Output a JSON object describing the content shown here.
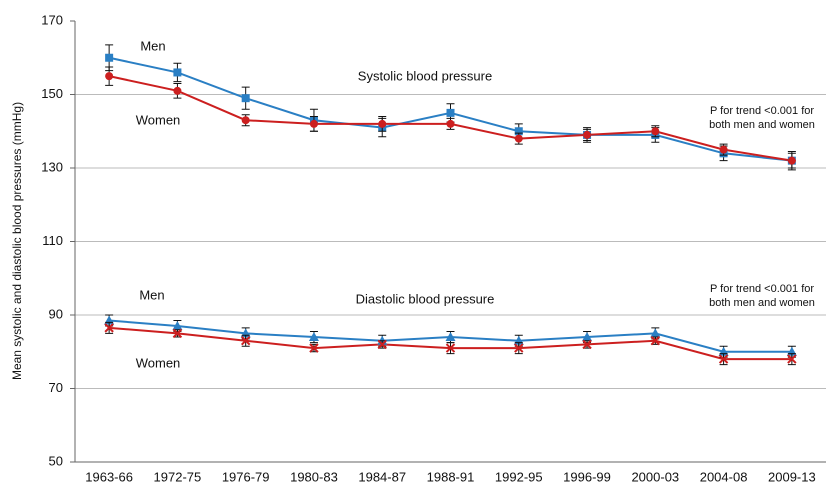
{
  "chart_data": {
    "type": "line",
    "y_label": "Mean systolic and diastolic blood pressures (mmHg)",
    "categories": [
      "1963-66",
      "1972-75",
      "1976-79",
      "1980-83",
      "1984-87",
      "1988-91",
      "1992-95",
      "1996-99",
      "2000-03",
      "2004-08",
      "2009-13"
    ],
    "ylim": [
      50,
      170
    ],
    "yticks": [
      50,
      70,
      90,
      110,
      130,
      150,
      170
    ],
    "grid": true,
    "series": [
      {
        "name": "Men",
        "color": "#2a7fc4",
        "marker": "square",
        "values": [
          160,
          156,
          149,
          143,
          141,
          145,
          140,
          139,
          139,
          134,
          132
        ],
        "errors": [
          3.5,
          2.5,
          3,
          3,
          2.5,
          2.5,
          2,
          2,
          2,
          2,
          2.5
        ]
      },
      {
        "name": "Women",
        "color": "#cc1f1f",
        "marker": "circle",
        "values": [
          155,
          151,
          143,
          142,
          142,
          142,
          138,
          139,
          140,
          135,
          132
        ],
        "errors": [
          2.5,
          2,
          1.5,
          2,
          2,
          1.5,
          1.5,
          1.5,
          1.5,
          1.5,
          2
        ]
      },
      {
        "name": "Men",
        "color": "#2a7fc4",
        "marker": "triangle",
        "values": [
          88.5,
          87,
          85,
          84,
          83,
          84,
          83,
          84,
          85,
          80,
          80
        ],
        "errors": [
          1.5,
          1.5,
          1.5,
          1.5,
          1.5,
          1.5,
          1.5,
          1.5,
          1.5,
          1.5,
          1.5
        ]
      },
      {
        "name": "Women",
        "color": "#cc1f1f",
        "marker": "x",
        "values": [
          86.5,
          85,
          83,
          81,
          82,
          81,
          81,
          82,
          83,
          78,
          78
        ],
        "errors": [
          1.5,
          1,
          1.5,
          1,
          1,
          1.5,
          1.5,
          1,
          1,
          1.5,
          1.5
        ]
      }
    ],
    "annotations": [
      [
        "Systolic blood pressure"
      ],
      [
        "P for trend <0.001 for",
        "both men and women"
      ],
      [
        "Diastolic blood pressure"
      ],
      [
        "P for trend <0.001 for",
        "both men and women"
      ]
    ]
  }
}
